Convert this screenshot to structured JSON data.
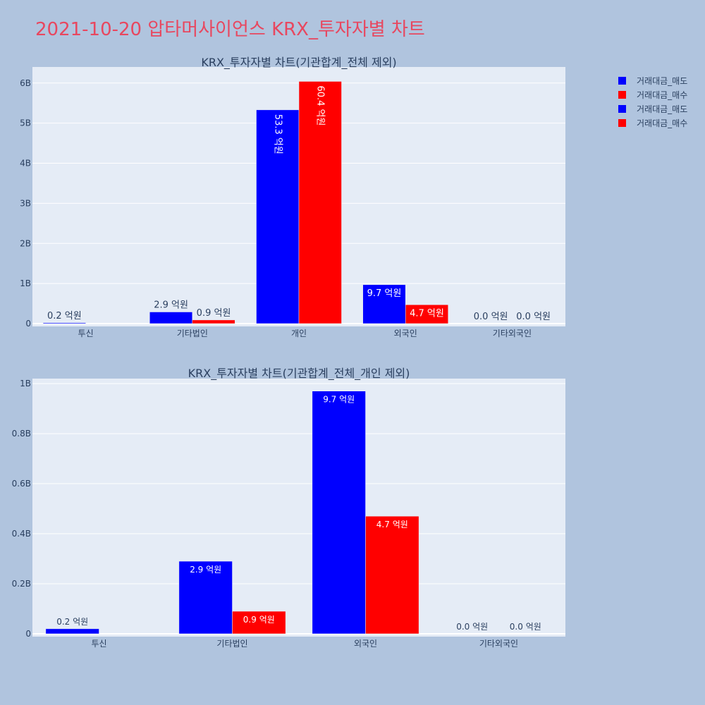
{
  "title": "2021-10-20 압타머사이언스 KRX_투자자별 차트",
  "colors": {
    "sell": "#0000ff",
    "buy": "#ff0000",
    "title": "#e8475f",
    "plot_bg": "#e5ecf6",
    "page_bg": "#b0c4de"
  },
  "legend": {
    "placement": "top-right",
    "items": [
      {
        "label": "거래대금_매도",
        "color": "#0000ff"
      },
      {
        "label": "거래대금_매수",
        "color": "#ff0000"
      },
      {
        "label": "거래대금_매도",
        "color": "#0000ff"
      },
      {
        "label": "거래대금_매수",
        "color": "#ff0000"
      }
    ]
  },
  "chart_data": [
    {
      "type": "bar",
      "title": "KRX_투자자별 차트(기관합계_전체 제외)",
      "categories": [
        "투신",
        "기타법인",
        "개인",
        "외국인",
        "기타외국인"
      ],
      "series": [
        {
          "name": "거래대금_매도",
          "color": "#0000ff",
          "values": [
            20000000,
            290000000,
            5330000000,
            970000000,
            0
          ],
          "labels": [
            "0.2 억원",
            "2.9 억원",
            "53.3 억원",
            "9.7 억원",
            "0.0 억원"
          ]
        },
        {
          "name": "거래대금_매수",
          "color": "#ff0000",
          "values": [
            0,
            90000000,
            6040000000,
            470000000,
            0
          ],
          "labels": [
            "",
            "0.9 억원",
            "60.4 억원",
            "4.7 억원",
            "0.0 억원"
          ]
        }
      ],
      "ylim": [
        0,
        6400000000
      ],
      "yticks": [
        0,
        1000000000,
        2000000000,
        3000000000,
        4000000000,
        5000000000,
        6000000000
      ],
      "ytick_labels": [
        "0",
        "1B",
        "2B",
        "3B",
        "4B",
        "5B",
        "6B"
      ],
      "grid": true
    },
    {
      "type": "bar",
      "title": "KRX_투자자별 차트(기관합계_전체_개인 제외)",
      "categories": [
        "투신",
        "기타법인",
        "외국인",
        "기타외국인"
      ],
      "series": [
        {
          "name": "거래대금_매도",
          "color": "#0000ff",
          "values": [
            20000000,
            290000000,
            970000000,
            0
          ],
          "labels": [
            "0.2 억원",
            "2.9 억원",
            "9.7 억원",
            "0.0 억원"
          ]
        },
        {
          "name": "거래대금_매수",
          "color": "#ff0000",
          "values": [
            0,
            90000000,
            470000000,
            0
          ],
          "labels": [
            "",
            "0.9 억원",
            "4.7 억원",
            "0.0 억원"
          ]
        }
      ],
      "ylim": [
        0,
        1020000000
      ],
      "yticks": [
        0,
        200000000,
        400000000,
        600000000,
        800000000,
        1000000000
      ],
      "ytick_labels": [
        "0",
        "0.2B",
        "0.4B",
        "0.6B",
        "0.8B",
        "1B"
      ],
      "grid": true
    }
  ]
}
